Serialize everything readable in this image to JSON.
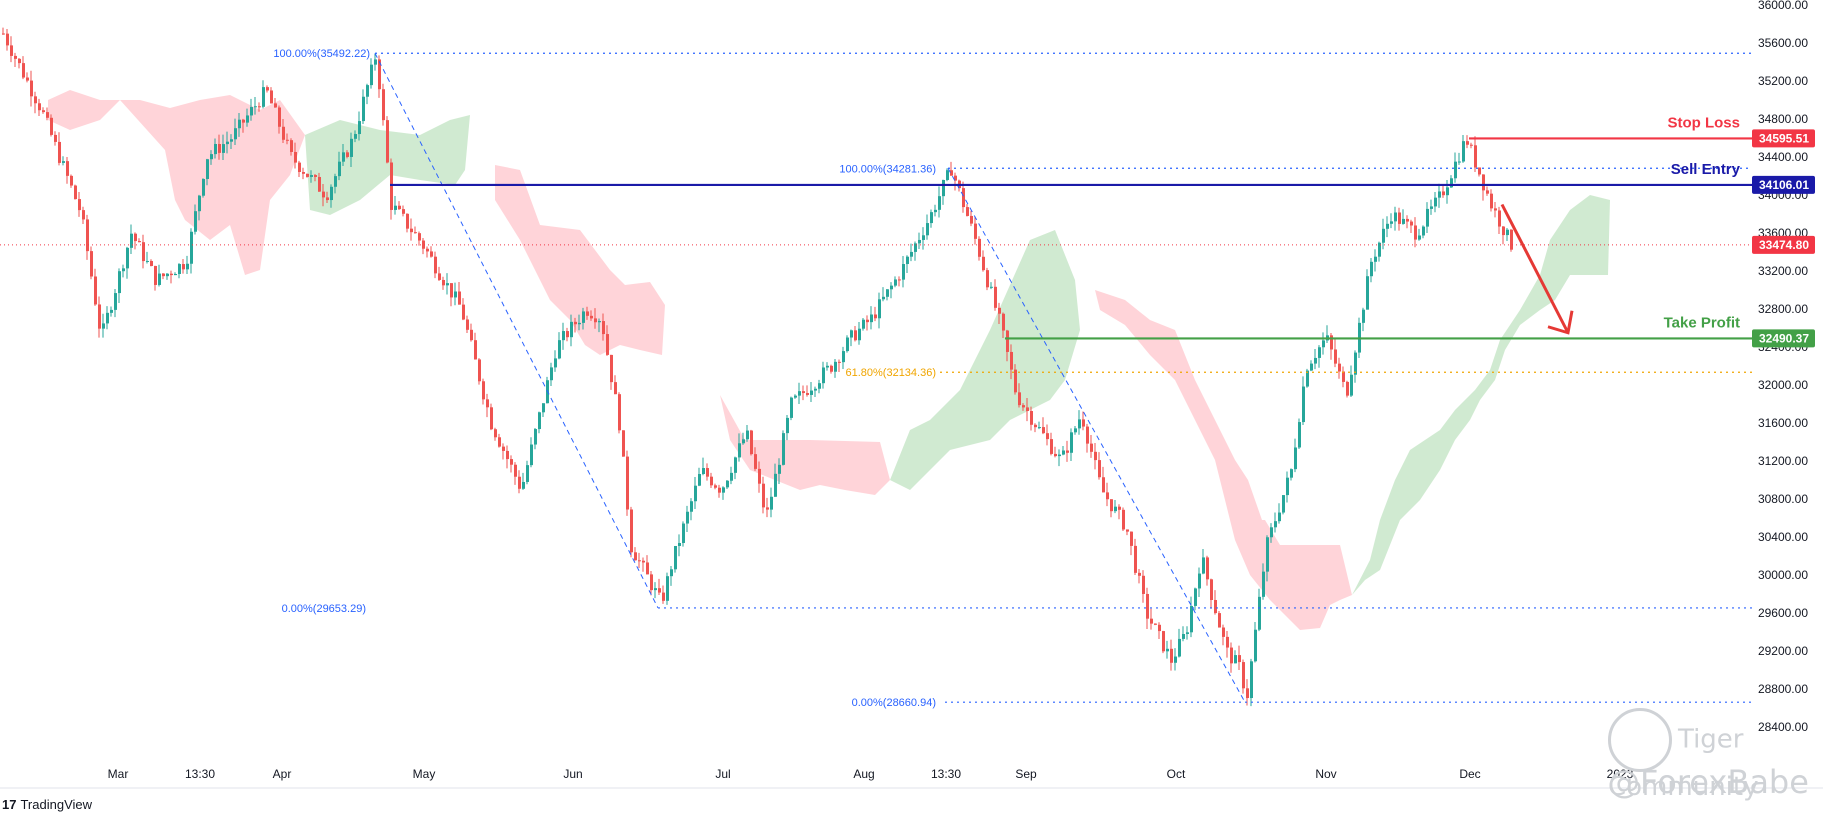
{
  "chart_data": {
    "type": "candlestick",
    "instrument": "",
    "ylim": [
      28400,
      36000
    ],
    "y_ticks": [
      "36000.00",
      "35600.00",
      "35200.00",
      "34800.00",
      "34400.00",
      "34000.00",
      "33600.00",
      "33200.00",
      "32800.00",
      "32400.00",
      "32000.00",
      "31600.00",
      "31200.00",
      "30800.00",
      "30400.00",
      "30000.00",
      "29600.00",
      "29200.00",
      "28800.00",
      "28400.00"
    ],
    "x_ticks": [
      "Mar",
      "13:30",
      "Apr",
      "May",
      "Jun",
      "Jul",
      "Aug",
      "13:30",
      "Sep",
      "Oct",
      "Nov",
      "Dec",
      "2023"
    ],
    "current_price": 33474.8,
    "price_labels": [
      {
        "label": "34595.51",
        "value": 34595.51,
        "color": "#f23645"
      },
      {
        "label": "34106.01",
        "value": 34106.01,
        "color": "#1a1aa8"
      },
      {
        "label": "33474.80",
        "value": 33474.8,
        "color": "#f23645"
      },
      {
        "label": "32490.37",
        "value": 32490.37,
        "color": "#43a047"
      }
    ],
    "levels": [
      {
        "name": "Stop Loss",
        "value": 34595.51,
        "color": "#f23645"
      },
      {
        "name": "Sell Entry",
        "value": 34106.01,
        "color": "#1a1aa8"
      },
      {
        "name": "Take Profit",
        "value": 32490.37,
        "color": "#43a047"
      }
    ],
    "fib_annotations": [
      {
        "label": "100.00%(35492.22)",
        "value": 35492.22,
        "color": "#2962ff"
      },
      {
        "label": "0.00%(29653.29)",
        "value": 29653.29,
        "color": "#2962ff"
      },
      {
        "label": "100.00%(34281.36)",
        "value": 34281.36,
        "color": "#2962ff"
      },
      {
        "label": "61.80%(32134.36)",
        "value": 32134.36,
        "color": "#f0a500"
      },
      {
        "label": "0.00%(28660.94)",
        "value": 28660.94,
        "color": "#2962ff"
      }
    ],
    "key_points": [
      {
        "label": "Apr high",
        "value": 35492.22
      },
      {
        "label": "Jun low",
        "value": 29653.29
      },
      {
        "label": "Aug high",
        "value": 34281.36
      },
      {
        "label": "Oct low",
        "value": 28660.94
      },
      {
        "label": "Dec high",
        "value": 34595.51
      },
      {
        "label": "last",
        "value": 33474.8
      }
    ],
    "colors": {
      "up": "#26a69a",
      "down": "#ef5350",
      "cloud_bull": "#c8e6c9",
      "cloud_bear": "#ffcdd2"
    }
  },
  "footer": {
    "brand": "TradingView",
    "brand_mark": "17"
  },
  "watermarks": {
    "community": "Tiger Community",
    "handle": "@ForexBabe"
  }
}
